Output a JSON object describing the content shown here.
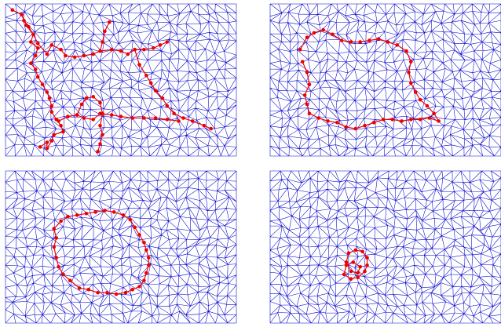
{
  "colors": {
    "background": "#ffffff",
    "mesh_edge": "#0000cc",
    "path_edge": "#ee0000",
    "path_node": "#ee0000"
  },
  "panels": [
    {
      "id": "top-left",
      "path": {
        "closed": false,
        "nodes": [
          [
            0.03,
            0.04
          ],
          [
            0.07,
            0.07
          ],
          [
            0.08,
            0.11
          ],
          [
            0.1,
            0.15
          ],
          [
            0.12,
            0.2
          ],
          [
            0.11,
            0.25
          ],
          [
            0.14,
            0.29
          ],
          [
            0.13,
            0.34
          ],
          [
            0.11,
            0.39
          ],
          [
            0.13,
            0.43
          ],
          [
            0.14,
            0.48
          ],
          [
            0.16,
            0.53
          ],
          [
            0.18,
            0.58
          ],
          [
            0.19,
            0.62
          ],
          [
            0.2,
            0.67
          ],
          [
            0.2,
            0.71
          ],
          [
            0.22,
            0.76
          ],
          [
            0.24,
            0.8
          ],
          [
            0.25,
            0.84
          ],
          [
            0.21,
            0.86
          ],
          [
            0.2,
            0.9
          ],
          [
            0.18,
            0.95
          ],
          [
            0.18,
            0.91
          ],
          [
            0.15,
            0.94
          ]
        ]
      },
      "branches": [
        {
          "nodes": [
            [
              0.07,
              0.07
            ],
            [
              0.09,
              0.14
            ],
            [
              0.12,
              0.2
            ],
            [
              0.14,
              0.26
            ],
            [
              0.18,
              0.33
            ],
            [
              0.2,
              0.27
            ],
            [
              0.24,
              0.3
            ],
            [
              0.26,
              0.34
            ],
            [
              0.3,
              0.35
            ],
            [
              0.34,
              0.34
            ],
            [
              0.38,
              0.33
            ],
            [
              0.41,
              0.31
            ],
            [
              0.42,
              0.25
            ],
            [
              0.43,
              0.18
            ],
            [
              0.45,
              0.12
            ]
          ]
        },
        {
          "nodes": [
            [
              0.41,
              0.31
            ],
            [
              0.46,
              0.3
            ],
            [
              0.5,
              0.31
            ],
            [
              0.53,
              0.33
            ],
            [
              0.56,
              0.3
            ],
            [
              0.6,
              0.3
            ],
            [
              0.64,
              0.29
            ],
            [
              0.67,
              0.27
            ],
            [
              0.7,
              0.25
            ]
          ]
        },
        {
          "nodes": [
            [
              0.56,
              0.3
            ],
            [
              0.58,
              0.4
            ],
            [
              0.61,
              0.47
            ],
            [
              0.63,
              0.52
            ],
            [
              0.65,
              0.57
            ],
            [
              0.68,
              0.62
            ],
            [
              0.7,
              0.67
            ],
            [
              0.73,
              0.72
            ],
            [
              0.77,
              0.75
            ],
            [
              0.81,
              0.77
            ],
            [
              0.86,
              0.8
            ],
            [
              0.89,
              0.82
            ]
          ]
        },
        {
          "nodes": [
            [
              0.23,
              0.77
            ],
            [
              0.27,
              0.74
            ],
            [
              0.31,
              0.73
            ],
            [
              0.34,
              0.75
            ],
            [
              0.38,
              0.76
            ],
            [
              0.41,
              0.72
            ],
            [
              0.46,
              0.73
            ],
            [
              0.5,
              0.74
            ],
            [
              0.55,
              0.75
            ],
            [
              0.6,
              0.75
            ],
            [
              0.65,
              0.75
            ],
            [
              0.7,
              0.76
            ],
            [
              0.75,
              0.77
            ]
          ]
        },
        {
          "nodes": [
            [
              0.31,
              0.73
            ],
            [
              0.33,
              0.66
            ],
            [
              0.35,
              0.62
            ],
            [
              0.38,
              0.61
            ],
            [
              0.41,
              0.65
            ],
            [
              0.42,
              0.72
            ],
            [
              0.41,
              0.8
            ],
            [
              0.42,
              0.86
            ],
            [
              0.41,
              0.92
            ],
            [
              0.4,
              0.97
            ]
          ]
        }
      ]
    },
    {
      "id": "top-right",
      "path": {
        "closed": false,
        "nodes": [
          [
            0.13,
            0.3
          ],
          [
            0.16,
            0.22
          ],
          [
            0.19,
            0.19
          ],
          [
            0.23,
            0.17
          ],
          [
            0.27,
            0.2
          ],
          [
            0.31,
            0.24
          ],
          [
            0.35,
            0.25
          ],
          [
            0.39,
            0.25
          ],
          [
            0.43,
            0.24
          ],
          [
            0.47,
            0.23
          ],
          [
            0.51,
            0.25
          ],
          [
            0.55,
            0.27
          ],
          [
            0.59,
            0.31
          ],
          [
            0.61,
            0.38
          ],
          [
            0.6,
            0.45
          ],
          [
            0.61,
            0.52
          ],
          [
            0.63,
            0.58
          ],
          [
            0.65,
            0.63
          ],
          [
            0.68,
            0.67
          ],
          [
            0.71,
            0.72
          ],
          [
            0.73,
            0.77
          ],
          [
            0.69,
            0.75
          ],
          [
            0.65,
            0.76
          ],
          [
            0.61,
            0.76
          ],
          [
            0.57,
            0.77
          ],
          [
            0.53,
            0.76
          ],
          [
            0.49,
            0.76
          ],
          [
            0.45,
            0.78
          ],
          [
            0.41,
            0.8
          ],
          [
            0.37,
            0.82
          ],
          [
            0.33,
            0.81
          ],
          [
            0.29,
            0.78
          ],
          [
            0.25,
            0.77
          ],
          [
            0.21,
            0.75
          ],
          [
            0.17,
            0.72
          ],
          [
            0.16,
            0.66
          ],
          [
            0.15,
            0.6
          ],
          [
            0.17,
            0.53
          ],
          [
            0.16,
            0.45
          ],
          [
            0.14,
            0.38
          ]
        ]
      },
      "branches": []
    },
    {
      "id": "bottom-left",
      "path": {
        "closed": true,
        "nodes": [
          [
            0.21,
            0.38
          ],
          [
            0.24,
            0.33
          ],
          [
            0.27,
            0.3
          ],
          [
            0.31,
            0.29
          ],
          [
            0.35,
            0.28
          ],
          [
            0.39,
            0.27
          ],
          [
            0.43,
            0.26
          ],
          [
            0.47,
            0.27
          ],
          [
            0.51,
            0.29
          ],
          [
            0.54,
            0.32
          ],
          [
            0.56,
            0.37
          ],
          [
            0.58,
            0.42
          ],
          [
            0.6,
            0.47
          ],
          [
            0.61,
            0.52
          ],
          [
            0.62,
            0.57
          ],
          [
            0.62,
            0.62
          ],
          [
            0.61,
            0.67
          ],
          [
            0.6,
            0.72
          ],
          [
            0.58,
            0.76
          ],
          [
            0.55,
            0.78
          ],
          [
            0.52,
            0.8
          ],
          [
            0.48,
            0.81
          ],
          [
            0.44,
            0.8
          ],
          [
            0.4,
            0.8
          ],
          [
            0.36,
            0.78
          ],
          [
            0.32,
            0.77
          ],
          [
            0.28,
            0.72
          ],
          [
            0.25,
            0.68
          ],
          [
            0.23,
            0.63
          ],
          [
            0.22,
            0.57
          ],
          [
            0.21,
            0.5
          ],
          [
            0.22,
            0.44
          ]
        ]
      },
      "branches": []
    },
    {
      "id": "bottom-right",
      "path": {
        "closed": true,
        "nodes": [
          [
            0.34,
            0.54
          ],
          [
            0.37,
            0.52
          ],
          [
            0.4,
            0.53
          ],
          [
            0.42,
            0.57
          ],
          [
            0.42,
            0.62
          ],
          [
            0.41,
            0.66
          ],
          [
            0.38,
            0.7
          ],
          [
            0.35,
            0.71
          ],
          [
            0.32,
            0.68
          ],
          [
            0.33,
            0.62
          ],
          [
            0.36,
            0.6
          ],
          [
            0.39,
            0.63
          ],
          [
            0.38,
            0.67
          ],
          [
            0.35,
            0.66
          ],
          [
            0.33,
            0.6
          ]
        ]
      },
      "branches": []
    }
  ]
}
